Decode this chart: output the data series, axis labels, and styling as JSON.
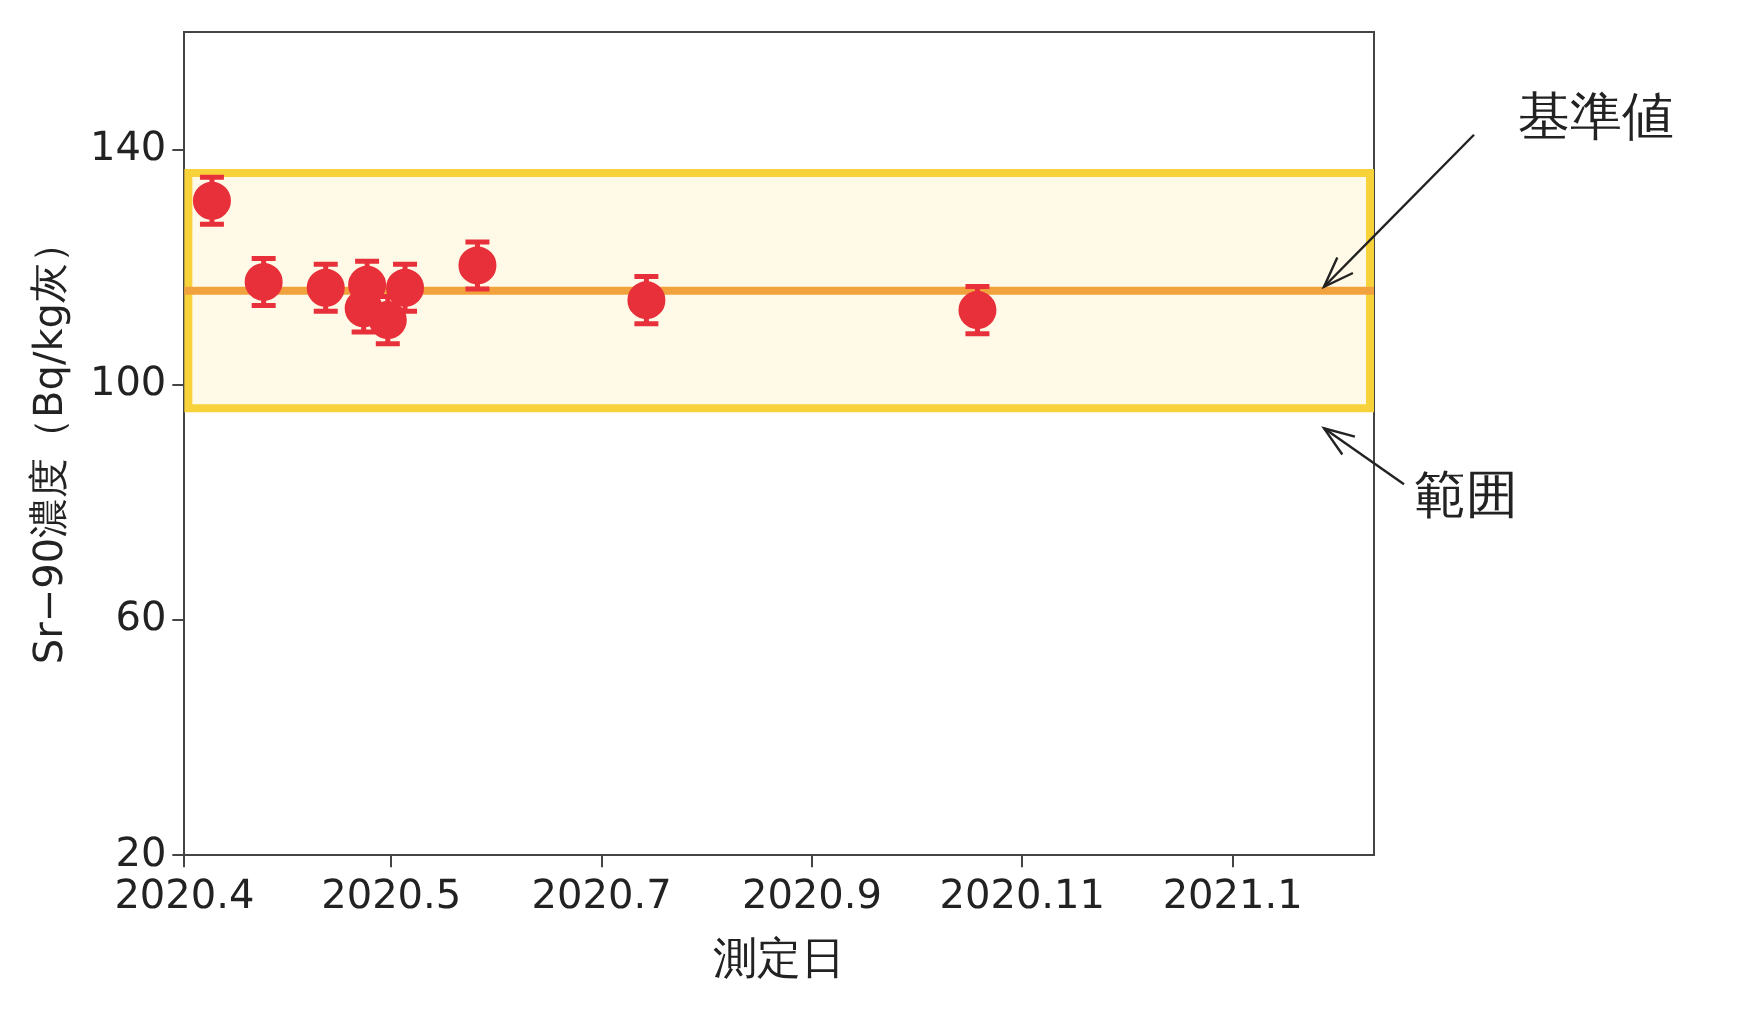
{
  "chart_data": {
    "type": "scatter",
    "xlabel": "測定日",
    "ylabel": "Sr−90濃度（Bq/kg灰）",
    "x": [
      "2020-04-09",
      "2020-04-24",
      "2020-05-12",
      "2020-05-24",
      "2020-05-23",
      "2020-05-30",
      "2020-06-04",
      "2020-06-25",
      "2020-08-13",
      "2020-11-17"
    ],
    "values": [
      131.3,
      117.5,
      116.5,
      117,
      113,
      111,
      116.5,
      120.3,
      114.4,
      112.7
    ],
    "errors": [
      4,
      4,
      4,
      4,
      4,
      4,
      4,
      4,
      4,
      4
    ],
    "color": "#e8303a",
    "marker": "circle",
    "xlim": [
      "2020-04-01",
      "2021-03-12"
    ],
    "xticks": [
      {
        "value": "2020-04-01",
        "label": "2020.4"
      },
      {
        "value": "2020-05-31",
        "label": "2020.5"
      },
      {
        "value": "2020-07-31",
        "label": "2020.7"
      },
      {
        "value": "2020-09-30",
        "label": "2020.9"
      },
      {
        "value": "2020-11-30",
        "label": "2020.11"
      },
      {
        "value": "2021-01-30",
        "label": "2021.1"
      }
    ],
    "ylim": [
      20,
      160
    ],
    "yticks": [
      20,
      60,
      100,
      140
    ],
    "grid": false,
    "legend": false,
    "ref_lines": [
      {
        "axis": "y",
        "value": 116,
        "label": "基準値",
        "color": "#f2a23c"
      }
    ],
    "bands": [
      {
        "axis": "y",
        "from": 96,
        "to": 136,
        "label": "範囲",
        "color": "#f7d23a"
      }
    ]
  }
}
